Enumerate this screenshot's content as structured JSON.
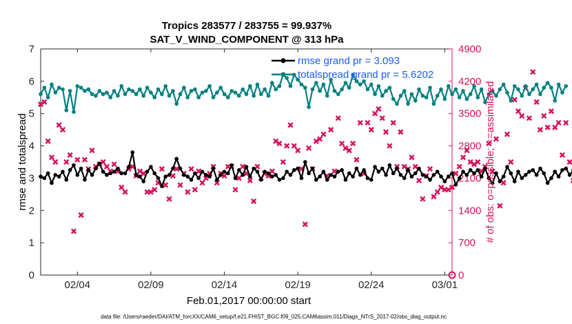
{
  "chart_data": {
    "type": "line",
    "title": "Tropics 283577 / 283755 = 99.937%",
    "subtitle": "SAT_V_WIND_COMPONENT @ 313 hPa",
    "xlabel": "Feb.01,2017 00:00:00 start",
    "ylabel": "rmse and totalspread",
    "y2label": "# of obs: o=possible; ×=assimilated",
    "footer": "data file: /Users/raeder/DAI/ATM_forcXX/CAM6_setup/f.e21.FHIST_BGC.f09_025.CAM6assim.011/Diags_NTrS_2017-02/obs_diag_output.nc",
    "xlim": [
      0.5,
      28.5
    ],
    "ylim": [
      0,
      7
    ],
    "y2lim": [
      0,
      4900
    ],
    "x_tick_values": [
      3,
      8,
      13,
      18,
      23,
      28
    ],
    "x_tick_labels": [
      "02/04",
      "02/09",
      "02/14",
      "02/19",
      "02/24",
      "03/01"
    ],
    "y_tick_labels": [
      "0",
      "1",
      "2",
      "3",
      "4",
      "5",
      "6",
      "7"
    ],
    "y2_tick_labels": [
      "0",
      "700",
      "1400",
      "2100",
      "2800",
      "3500",
      "4200",
      "4900"
    ],
    "colors": {
      "rmse": "#000000",
      "spread": "#008080",
      "obs": "#d6105a",
      "legend_text": "#1a5cff"
    },
    "series": [
      {
        "name": "rmse grand pr = 3.093",
        "axis": "left",
        "x_start": 0.5,
        "x_step": 0.25,
        "values": [
          3.05,
          3.0,
          3.15,
          2.85,
          3.1,
          3.05,
          3.2,
          2.95,
          3.25,
          3.4,
          3.1,
          3.3,
          2.95,
          3.25,
          3.1,
          3.3,
          3.45,
          3.2,
          3.1,
          3.15,
          3.2,
          3.3,
          3.15,
          3.15,
          3.35,
          3.8,
          3.1,
          3.05,
          2.9,
          3.2,
          3.35,
          3.15,
          3.0,
          2.75,
          3.05,
          3.1,
          3.3,
          3.6,
          3.3,
          3.1,
          3.05,
          2.95,
          3.15,
          3.0,
          3.2,
          3.1,
          3.05,
          3.3,
          2.95,
          3.1,
          3.2,
          3.15,
          3.4,
          3.0,
          3.25,
          3.1,
          3.35,
          3.05,
          3.3,
          3.2,
          2.95,
          3.2,
          3.15,
          3.05,
          3.1,
          2.95,
          3.0,
          3.2,
          3.1,
          3.25,
          3.3,
          3.0,
          3.5,
          3.15,
          3.3,
          2.95,
          3.05,
          3.2,
          2.95,
          3.1,
          3.05,
          3.2,
          3.25,
          2.95,
          3.15,
          3.05,
          3.3,
          3.1,
          3.25,
          3.0,
          2.95,
          3.35,
          3.2,
          3.3,
          3.1,
          3.4,
          3.15,
          3.3,
          3.1,
          3.0,
          3.25,
          3.05,
          3.15,
          3.3,
          3.1,
          3.05,
          2.95,
          3.1,
          3.2,
          3.05,
          2.9,
          3.05,
          3.15,
          2.8,
          3.0,
          3.2,
          3.1,
          3.25,
          3.15,
          3.25,
          3.05,
          3.3,
          3.0,
          2.85,
          3.15,
          2.9,
          3.05,
          3.35,
          3.15,
          2.9,
          3.2,
          3.0,
          3.1,
          3.2,
          3.25,
          3.1,
          3.3,
          3.15,
          2.85,
          3.0,
          3.2,
          3.05,
          3.25,
          3.3,
          3.1,
          3.25
        ]
      },
      {
        "name": "totalspread grand pr = 5.6202",
        "axis": "left",
        "x_start": 0.5,
        "x_step": 0.25,
        "values": [
          5.6,
          5.8,
          5.5,
          5.9,
          5.65,
          5.8,
          5.75,
          5.1,
          5.7,
          5.05,
          5.85,
          5.8,
          5.7,
          5.75,
          5.6,
          5.55,
          5.7,
          5.6,
          5.65,
          5.5,
          5.7,
          5.55,
          5.85,
          5.6,
          5.75,
          5.7,
          5.6,
          5.75,
          5.55,
          5.8,
          5.65,
          5.5,
          5.75,
          5.6,
          5.85,
          5.55,
          5.7,
          5.3,
          5.6,
          5.8,
          5.5,
          5.7,
          5.75,
          5.5,
          5.65,
          5.7,
          5.85,
          5.5,
          5.65,
          5.8,
          5.6,
          5.5,
          5.7,
          5.65,
          5.55,
          5.75,
          5.6,
          5.85,
          5.55,
          5.9,
          5.6,
          5.75,
          5.55,
          5.95,
          5.75,
          5.85,
          6.2,
          6.1,
          5.85,
          6.2,
          6.05,
          5.9,
          5.8,
          5.2,
          5.75,
          5.95,
          5.7,
          5.9,
          5.55,
          6.05,
          5.7,
          5.6,
          5.75,
          5.95,
          5.8,
          6.2,
          6.0,
          5.9,
          6.0,
          5.75,
          5.9,
          5.6,
          5.85,
          5.55,
          5.7,
          5.8,
          5.45,
          5.3,
          5.55,
          5.7,
          5.3,
          5.6,
          5.4,
          5.75,
          5.55,
          5.5,
          5.8,
          5.3,
          5.55,
          5.75,
          5.45,
          5.85,
          5.6,
          5.75,
          5.5,
          5.7,
          5.45,
          5.6,
          5.85,
          5.5,
          5.75,
          5.35,
          5.6,
          5.7,
          5.55,
          5.75,
          5.9,
          5.65,
          5.4,
          5.85,
          5.75,
          5.55,
          5.85,
          5.6,
          5.75,
          5.9,
          5.6,
          5.8,
          5.95,
          5.8,
          5.4,
          5.9,
          5.65,
          5.85
        ]
      },
      {
        "name": "# of obs assimilated",
        "axis": "right",
        "x_start": 0.5,
        "x_step": 0.25,
        "values": [
          3700,
          3750,
          2900,
          2550,
          2450,
          3250,
          3150,
          2450,
          2600,
          950,
          2500,
          1300,
          2500,
          2300,
          2700,
          2350,
          2400,
          2450,
          2350,
          2250,
          2400,
          2250,
          1900,
          1800,
          2300,
          2350,
          2150,
          2250,
          2200,
          1800,
          1800,
          1850,
          2000,
          2300,
          1950,
          1650,
          2150,
          2300,
          1950,
          2200,
          1800,
          2300,
          1850,
          2250,
          2000,
          2100,
          2200,
          2350,
          2000,
          2200,
          2150,
          2350,
          2350,
          1850,
          2100,
          2350,
          2200,
          2050,
          1600,
          2350,
          2100,
          2200,
          2150,
          2250,
          2900,
          2850,
          2450,
          2800,
          3250,
          2800,
          2700,
          2300,
          1100,
          2750,
          2300,
          2900,
          2950,
          3050,
          2150,
          3150,
          2250,
          3400,
          2850,
          2750,
          2700,
          2850,
          2500,
          3300,
          2200,
          3300,
          3150,
          3500,
          3600,
          3400,
          3100,
          2800,
          3300,
          2350,
          3100,
          2350,
          2300,
          2550,
          2350,
          2050,
          1650,
          2150,
          2300,
          1700,
          1800,
          1900,
          1850,
          1850,
          1900,
          2200,
          2350,
          2550,
          2700,
          2450,
          2400,
          2450,
          2250,
          2350,
          2850,
          2250,
          2950,
          1500,
          2000,
          3050,
          2450,
          3800,
          3550,
          3450,
          4050,
          3400,
          4400,
          3750,
          3150,
          3450,
          3200,
          3550,
          3200,
          3300,
          2600,
          3300,
          2450,
          2050
        ]
      }
    ],
    "obs_possible_marker": {
      "x": 28.5,
      "value": 0
    }
  }
}
